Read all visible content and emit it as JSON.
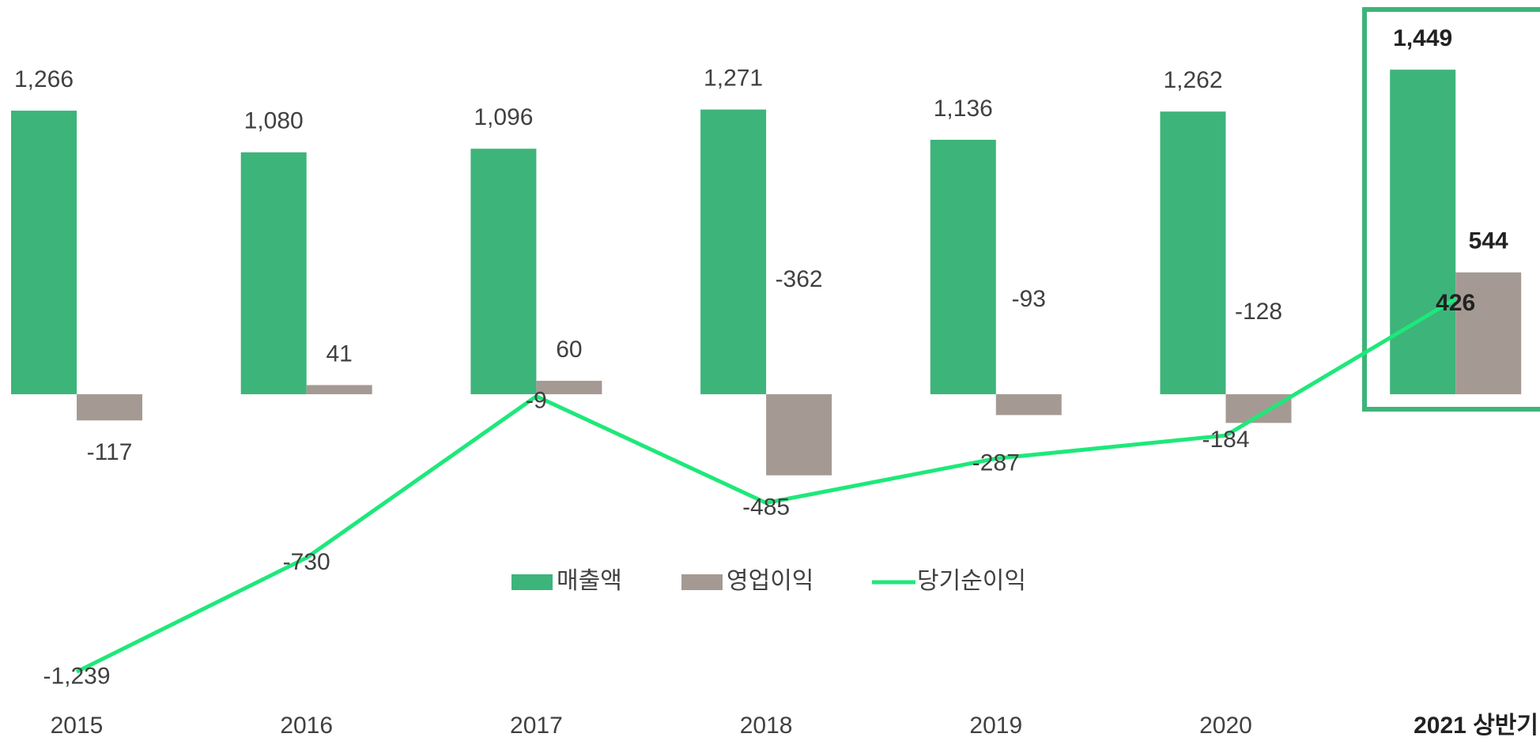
{
  "chart_data": {
    "type": "bar",
    "categories": [
      "2015",
      "2016",
      "2017",
      "2018",
      "2019",
      "2020",
      "2021 상반기"
    ],
    "series": [
      {
        "name": "매출액",
        "type": "bar",
        "color": "#3db47a",
        "values": [
          1266,
          1080,
          1096,
          1271,
          1136,
          1262,
          1449
        ],
        "value_labels": [
          "1,266",
          "1,080",
          "1,096",
          "1,271",
          "1,136",
          "1,262",
          "1,449"
        ]
      },
      {
        "name": "영업이익",
        "type": "bar",
        "color": "#a49a93",
        "values": [
          -117,
          41,
          60,
          -362,
          -93,
          -128,
          544
        ]
      },
      {
        "name": "당기순이익",
        "type": "line",
        "color": "#1ee87a",
        "values": [
          -1239,
          -730,
          -9,
          -485,
          -287,
          -184,
          426
        ],
        "value_labels": [
          "-1,239",
          "-730",
          "-9",
          "-485",
          "-287",
          "-184",
          "426"
        ]
      }
    ],
    "ylim": [
      -1548,
      1760
    ]
  }
}
